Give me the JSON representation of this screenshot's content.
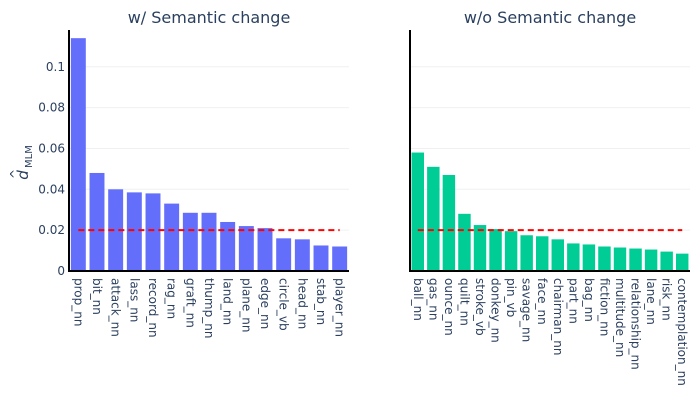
{
  "ylabel": {
    "main": "d",
    "hat": "^",
    "sub": "MLM"
  },
  "chart_data": [
    {
      "type": "bar",
      "title": "w/ Semantic change",
      "color": "#636efa",
      "threshold": 0.02,
      "threshold_color": "#ff0000",
      "ylim": [
        0,
        0.118
      ],
      "yticks": [
        "0",
        "0.02",
        "0.04",
        "0.06",
        "0.08",
        "0.1"
      ],
      "grid": true,
      "categories": [
        "prop_nn",
        "bit_nn",
        "attack_nn",
        "lass_nn",
        "record_nn",
        "rag_nn",
        "graft_nn",
        "thump_nn",
        "land_nn",
        "plane_nn",
        "edge_nn",
        "circle_vb",
        "head_nn",
        "stab_nn",
        "player_nn"
      ],
      "values": [
        0.114,
        0.048,
        0.04,
        0.0385,
        0.038,
        0.033,
        0.0285,
        0.0285,
        0.024,
        0.022,
        0.021,
        0.016,
        0.0155,
        0.0125,
        0.012
      ]
    },
    {
      "type": "bar",
      "title": "w/o Semantic change",
      "color": "#00cc96",
      "threshold": 0.02,
      "threshold_color": "#ff0000",
      "ylim": [
        0,
        0.118
      ],
      "grid": true,
      "categories": [
        "ball_nn",
        "gas_nn",
        "ounce_nn",
        "quilt_nn",
        "stroke_vb",
        "donkey_nn",
        "pin_vb",
        "savage_nn",
        "face_nn",
        "chairman_nn",
        "part_nn",
        "bag_nn",
        "fiction_nn",
        "multitude_nn",
        "relationship_nn",
        "lane_nn",
        "risk_nn",
        "contemplation_nn"
      ],
      "values": [
        0.058,
        0.051,
        0.047,
        0.028,
        0.0225,
        0.0205,
        0.0195,
        0.0175,
        0.017,
        0.0155,
        0.0135,
        0.013,
        0.012,
        0.0115,
        0.011,
        0.0105,
        0.0095,
        0.0085
      ]
    }
  ]
}
